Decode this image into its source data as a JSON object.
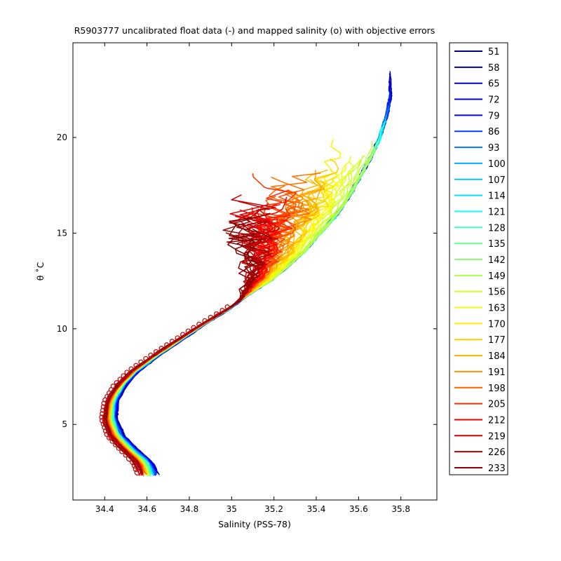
{
  "chart_data": {
    "type": "line",
    "title": "R5903777 uncalibrated float data (-) and mapped salinity (o) with objective errors",
    "xlabel": "Salinity (PSS-78)",
    "ylabel": "θ ˚C",
    "xlim": [
      34.25,
      35.97
    ],
    "ylim": [
      1.05,
      24.95
    ],
    "xticks": [
      34.4,
      34.6,
      34.8,
      35,
      35.2,
      35.4,
      35.6,
      35.8
    ],
    "yticks": [
      5,
      10,
      15,
      20
    ],
    "grid": false,
    "legend_position": "outside-right",
    "colormap": [
      "#00008f",
      "#0000ff",
      "#0080ff",
      "#00ffff",
      "#80ff80",
      "#ffff00",
      "#ff8000",
      "#ff0000",
      "#800000"
    ],
    "mapped_marker_color": "#c01010",
    "series": [
      {
        "name": "51",
        "color": "#00008f"
      },
      {
        "name": "58",
        "color": "#0000ad"
      },
      {
        "name": "65",
        "color": "#0000ca"
      },
      {
        "name": "72",
        "color": "#0000e8"
      },
      {
        "name": "79",
        "color": "#0008ff"
      },
      {
        "name": "86",
        "color": "#0040ff"
      },
      {
        "name": "93",
        "color": "#0078ff"
      },
      {
        "name": "100",
        "color": "#00a8ff"
      },
      {
        "name": "107",
        "color": "#00c8ff"
      },
      {
        "name": "114",
        "color": "#00e4ff"
      },
      {
        "name": "121",
        "color": "#10fff0"
      },
      {
        "name": "128",
        "color": "#40ffc0"
      },
      {
        "name": "135",
        "color": "#70ff90"
      },
      {
        "name": "142",
        "color": "#90ff70"
      },
      {
        "name": "149",
        "color": "#b0ff50"
      },
      {
        "name": "156",
        "color": "#d0ff30"
      },
      {
        "name": "163",
        "color": "#f0ff10"
      },
      {
        "name": "170",
        "color": "#ffec00"
      },
      {
        "name": "177",
        "color": "#ffd000"
      },
      {
        "name": "184",
        "color": "#ffb000"
      },
      {
        "name": "191",
        "color": "#ff9000"
      },
      {
        "name": "198",
        "color": "#ff6000"
      },
      {
        "name": "205",
        "color": "#ff3000"
      },
      {
        "name": "212",
        "color": "#f00000"
      },
      {
        "name": "219",
        "color": "#d00000"
      },
      {
        "name": "226",
        "color": "#b00000"
      },
      {
        "name": "233",
        "color": "#8f0000"
      }
    ]
  }
}
